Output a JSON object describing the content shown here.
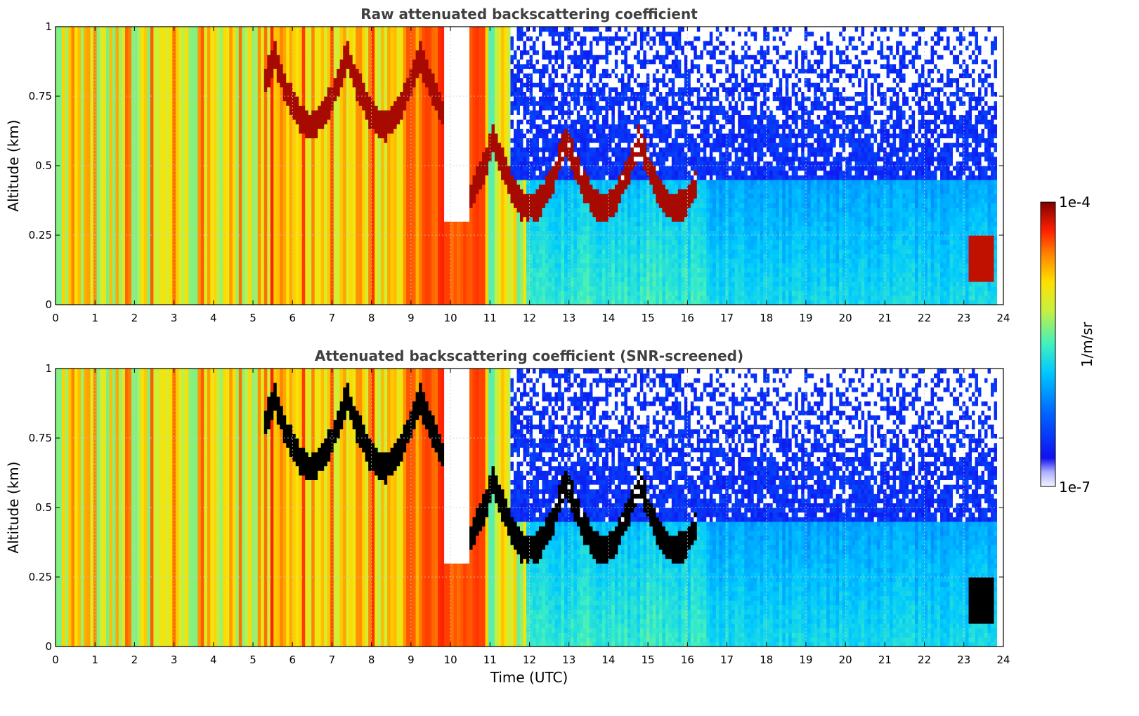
{
  "chart_data": [
    {
      "type": "heatmap",
      "title": "Raw attenuated backscattering coefficient",
      "xlabel": "",
      "ylabel": "Altitude (km)",
      "xlim": [
        0,
        24
      ],
      "ylim": [
        0,
        1
      ],
      "x_ticks": [
        "0",
        "1",
        "2",
        "3",
        "4",
        "5",
        "6",
        "7",
        "8",
        "9",
        "10",
        "11",
        "12",
        "13",
        "14",
        "15",
        "16",
        "17",
        "18",
        "19",
        "20",
        "21",
        "22",
        "23",
        "24"
      ],
      "y_ticks": [
        "0",
        "0.25",
        "0.5",
        "0.75",
        "1"
      ],
      "grid": true,
      "colorscale": "jet",
      "screened": false
    },
    {
      "type": "heatmap",
      "title": "Attenuated backscattering coefficient (SNR-screened)",
      "xlabel": "Time (UTC)",
      "ylabel": "Altitude (km)",
      "xlim": [
        0,
        24
      ],
      "ylim": [
        0,
        1
      ],
      "x_ticks": [
        "0",
        "1",
        "2",
        "3",
        "4",
        "5",
        "6",
        "7",
        "8",
        "9",
        "10",
        "11",
        "12",
        "13",
        "14",
        "15",
        "16",
        "17",
        "18",
        "19",
        "20",
        "21",
        "22",
        "23",
        "24"
      ],
      "y_ticks": [
        "0",
        "0.25",
        "0.5",
        "0.75",
        "1"
      ],
      "grid": true,
      "colorscale": "jet",
      "screened": true
    }
  ],
  "colorbar": {
    "label": "1/m/sr",
    "max_label": "1e-4",
    "min_label": "1e-7",
    "scale": "log",
    "range": [
      1e-07,
      0.0001
    ]
  },
  "colors": {
    "saturated": "#000000",
    "missing": "#ffffff"
  }
}
